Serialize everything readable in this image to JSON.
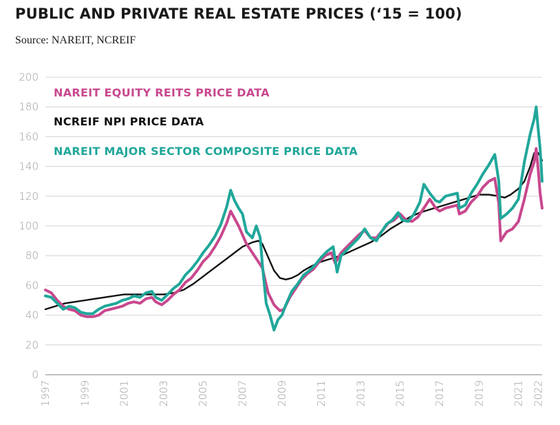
{
  "title": "PUBLIC AND PRIVATE REAL ESTATE PRICES (‘15 = 100)",
  "subtitle": "Source: NAREIT, NCREIF",
  "chart_data": {
    "type": "line",
    "title": "PUBLIC AND PRIVATE REAL ESTATE PRICES (‘15 = 100)",
    "xlabel": "",
    "ylabel": "",
    "xlim": [
      1997,
      2022.2
    ],
    "ylim": [
      0,
      200
    ],
    "y_ticks": [
      0,
      20,
      40,
      60,
      80,
      100,
      120,
      140,
      160,
      180,
      200
    ],
    "x_ticks": [
      "1997",
      "1999",
      "2001",
      "2003",
      "2005",
      "2007",
      "2009",
      "2011",
      "2013",
      "2015",
      "2017",
      "2019",
      "2021",
      "2022"
    ],
    "x_tick_values": [
      1997,
      1999,
      2001,
      2003,
      2005,
      2007,
      2009,
      2011,
      2013,
      2015,
      2017,
      2019,
      2021,
      2022
    ],
    "grid": "horizontal",
    "legend_placement": "top-left",
    "series": [
      {
        "name": "NAREIT EQUITY REITS PRICE DATA",
        "color": "#c8488e",
        "points": [
          [
            1997.0,
            57
          ],
          [
            1997.3,
            55
          ],
          [
            1997.6,
            50
          ],
          [
            1997.9,
            46
          ],
          [
            1998.2,
            44
          ],
          [
            1998.5,
            43
          ],
          [
            1998.8,
            40
          ],
          [
            1999.1,
            39
          ],
          [
            1999.4,
            39
          ],
          [
            1999.7,
            40
          ],
          [
            2000.0,
            43
          ],
          [
            2000.3,
            44
          ],
          [
            2000.6,
            45
          ],
          [
            2000.9,
            46
          ],
          [
            2001.2,
            48
          ],
          [
            2001.5,
            49
          ],
          [
            2001.8,
            48
          ],
          [
            2002.1,
            51
          ],
          [
            2002.4,
            52
          ],
          [
            2002.6,
            49
          ],
          [
            2002.9,
            47
          ],
          [
            2003.2,
            50
          ],
          [
            2003.5,
            54
          ],
          [
            2003.8,
            57
          ],
          [
            2004.1,
            62
          ],
          [
            2004.4,
            65
          ],
          [
            2004.7,
            70
          ],
          [
            2005.0,
            76
          ],
          [
            2005.3,
            80
          ],
          [
            2005.6,
            86
          ],
          [
            2005.9,
            93
          ],
          [
            2006.2,
            102
          ],
          [
            2006.4,
            110
          ],
          [
            2006.6,
            105
          ],
          [
            2006.8,
            100
          ],
          [
            2007.0,
            94
          ],
          [
            2007.2,
            88
          ],
          [
            2007.5,
            82
          ],
          [
            2007.8,
            76
          ],
          [
            2008.0,
            72
          ],
          [
            2008.3,
            55
          ],
          [
            2008.6,
            47
          ],
          [
            2008.9,
            43
          ],
          [
            2009.1,
            44
          ],
          [
            2009.4,
            52
          ],
          [
            2009.7,
            58
          ],
          [
            2010.0,
            64
          ],
          [
            2010.3,
            68
          ],
          [
            2010.6,
            71
          ],
          [
            2010.9,
            76
          ],
          [
            2011.2,
            80
          ],
          [
            2011.5,
            82
          ],
          [
            2011.7,
            75
          ],
          [
            2012.0,
            82
          ],
          [
            2012.3,
            86
          ],
          [
            2012.6,
            90
          ],
          [
            2012.9,
            94
          ],
          [
            2013.2,
            97
          ],
          [
            2013.5,
            92
          ],
          [
            2013.8,
            92
          ],
          [
            2014.1,
            97
          ],
          [
            2014.4,
            102
          ],
          [
            2014.7,
            104
          ],
          [
            2015.0,
            108
          ],
          [
            2015.3,
            104
          ],
          [
            2015.6,
            103
          ],
          [
            2015.9,
            106
          ],
          [
            2016.2,
            112
          ],
          [
            2016.5,
            118
          ],
          [
            2016.8,
            112
          ],
          [
            2017.0,
            110
          ],
          [
            2017.3,
            112
          ],
          [
            2017.6,
            113
          ],
          [
            2017.9,
            114
          ],
          [
            2018.0,
            108
          ],
          [
            2018.3,
            110
          ],
          [
            2018.6,
            116
          ],
          [
            2018.9,
            120
          ],
          [
            2019.2,
            126
          ],
          [
            2019.5,
            130
          ],
          [
            2019.8,
            132
          ],
          [
            2020.0,
            115
          ],
          [
            2020.1,
            90
          ],
          [
            2020.4,
            96
          ],
          [
            2020.7,
            98
          ],
          [
            2021.0,
            103
          ],
          [
            2021.3,
            118
          ],
          [
            2021.6,
            135
          ],
          [
            2021.8,
            143
          ],
          [
            2021.9,
            152
          ],
          [
            2022.0,
            138
          ],
          [
            2022.1,
            122
          ],
          [
            2022.2,
            112
          ]
        ]
      },
      {
        "name": "NCREIF NPI PRICE DATA",
        "color": "#111111",
        "points": [
          [
            1997.0,
            44
          ],
          [
            1997.5,
            46
          ],
          [
            1998.0,
            48
          ],
          [
            1998.5,
            49
          ],
          [
            1999.0,
            50
          ],
          [
            1999.5,
            51
          ],
          [
            2000.0,
            52
          ],
          [
            2000.5,
            53
          ],
          [
            2001.0,
            54
          ],
          [
            2001.5,
            54
          ],
          [
            2002.0,
            54
          ],
          [
            2002.5,
            54
          ],
          [
            2003.0,
            54
          ],
          [
            2003.5,
            55
          ],
          [
            2004.0,
            57
          ],
          [
            2004.5,
            61
          ],
          [
            2005.0,
            66
          ],
          [
            2005.5,
            71
          ],
          [
            2006.0,
            76
          ],
          [
            2006.5,
            81
          ],
          [
            2007.0,
            86
          ],
          [
            2007.5,
            89
          ],
          [
            2007.8,
            90
          ],
          [
            2008.0,
            88
          ],
          [
            2008.3,
            79
          ],
          [
            2008.6,
            70
          ],
          [
            2008.9,
            65
          ],
          [
            2009.2,
            64
          ],
          [
            2009.5,
            65
          ],
          [
            2009.8,
            67
          ],
          [
            2010.1,
            70
          ],
          [
            2010.5,
            73
          ],
          [
            2011.0,
            76
          ],
          [
            2011.5,
            78
          ],
          [
            2012.0,
            80
          ],
          [
            2012.5,
            83
          ],
          [
            2013.0,
            86
          ],
          [
            2013.5,
            89
          ],
          [
            2014.0,
            93
          ],
          [
            2014.5,
            98
          ],
          [
            2015.0,
            102
          ],
          [
            2015.5,
            106
          ],
          [
            2016.0,
            109
          ],
          [
            2016.5,
            111
          ],
          [
            2017.0,
            113
          ],
          [
            2017.5,
            115
          ],
          [
            2018.0,
            117
          ],
          [
            2018.5,
            119
          ],
          [
            2019.0,
            121
          ],
          [
            2019.5,
            121
          ],
          [
            2020.0,
            120
          ],
          [
            2020.3,
            119
          ],
          [
            2020.6,
            121
          ],
          [
            2021.0,
            125
          ],
          [
            2021.3,
            130
          ],
          [
            2021.6,
            140
          ],
          [
            2021.8,
            149
          ],
          [
            2022.0,
            149
          ],
          [
            2022.1,
            147
          ],
          [
            2022.2,
            144
          ]
        ]
      },
      {
        "name": "NAREIT MAJOR SECTOR COMPOSITE PRICE DATA",
        "color": "#20a79a",
        "points": [
          [
            1997.0,
            53
          ],
          [
            1997.3,
            52
          ],
          [
            1997.6,
            48
          ],
          [
            1997.9,
            44
          ],
          [
            1998.2,
            46
          ],
          [
            1998.5,
            45
          ],
          [
            1998.8,
            42
          ],
          [
            1999.1,
            41
          ],
          [
            1999.4,
            41
          ],
          [
            1999.7,
            44
          ],
          [
            2000.0,
            46
          ],
          [
            2000.3,
            47
          ],
          [
            2000.6,
            48
          ],
          [
            2000.9,
            50
          ],
          [
            2001.2,
            51
          ],
          [
            2001.5,
            53
          ],
          [
            2001.8,
            52
          ],
          [
            2002.1,
            55
          ],
          [
            2002.4,
            56
          ],
          [
            2002.6,
            52
          ],
          [
            2002.9,
            50
          ],
          [
            2003.2,
            54
          ],
          [
            2003.5,
            58
          ],
          [
            2003.8,
            61
          ],
          [
            2004.1,
            67
          ],
          [
            2004.4,
            71
          ],
          [
            2004.7,
            76
          ],
          [
            2005.0,
            82
          ],
          [
            2005.3,
            87
          ],
          [
            2005.6,
            93
          ],
          [
            2005.9,
            101
          ],
          [
            2006.2,
            113
          ],
          [
            2006.4,
            124
          ],
          [
            2006.6,
            117
          ],
          [
            2006.8,
            112
          ],
          [
            2007.0,
            108
          ],
          [
            2007.2,
            96
          ],
          [
            2007.5,
            92
          ],
          [
            2007.7,
            100
          ],
          [
            2007.9,
            92
          ],
          [
            2008.0,
            75
          ],
          [
            2008.2,
            48
          ],
          [
            2008.4,
            40
          ],
          [
            2008.6,
            30
          ],
          [
            2008.8,
            37
          ],
          [
            2009.0,
            40
          ],
          [
            2009.2,
            47
          ],
          [
            2009.5,
            56
          ],
          [
            2009.8,
            61
          ],
          [
            2010.1,
            67
          ],
          [
            2010.4,
            70
          ],
          [
            2010.7,
            74
          ],
          [
            2011.0,
            79
          ],
          [
            2011.3,
            83
          ],
          [
            2011.6,
            86
          ],
          [
            2011.8,
            69
          ],
          [
            2012.0,
            80
          ],
          [
            2012.3,
            84
          ],
          [
            2012.6,
            88
          ],
          [
            2012.9,
            92
          ],
          [
            2013.2,
            98
          ],
          [
            2013.5,
            92
          ],
          [
            2013.8,
            90
          ],
          [
            2014.0,
            95
          ],
          [
            2014.3,
            101
          ],
          [
            2014.6,
            104
          ],
          [
            2014.9,
            109
          ],
          [
            2015.1,
            104
          ],
          [
            2015.4,
            103
          ],
          [
            2015.7,
            108
          ],
          [
            2016.0,
            116
          ],
          [
            2016.2,
            128
          ],
          [
            2016.5,
            122
          ],
          [
            2016.8,
            117
          ],
          [
            2017.0,
            116
          ],
          [
            2017.3,
            120
          ],
          [
            2017.6,
            121
          ],
          [
            2017.9,
            122
          ],
          [
            2018.0,
            112
          ],
          [
            2018.3,
            114
          ],
          [
            2018.6,
            122
          ],
          [
            2018.9,
            128
          ],
          [
            2019.2,
            135
          ],
          [
            2019.5,
            141
          ],
          [
            2019.8,
            148
          ],
          [
            2020.0,
            130
          ],
          [
            2020.1,
            105
          ],
          [
            2020.4,
            108
          ],
          [
            2020.7,
            112
          ],
          [
            2021.0,
            118
          ],
          [
            2021.3,
            143
          ],
          [
            2021.6,
            162
          ],
          [
            2021.8,
            172
          ],
          [
            2021.9,
            180
          ],
          [
            2022.0,
            165
          ],
          [
            2022.1,
            152
          ],
          [
            2022.2,
            130
          ]
        ]
      }
    ]
  }
}
